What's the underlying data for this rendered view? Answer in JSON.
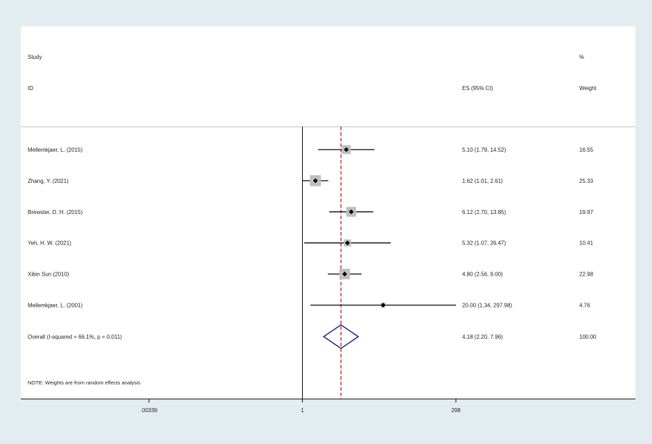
{
  "chart_data": {
    "type": "forest",
    "header": {
      "study_line1": "Study",
      "study_line2": "ID",
      "es_label": "ES (95% CI)",
      "weight_line1": "%",
      "weight_line2": "Weight"
    },
    "studies": [
      {
        "label": "Mellemkjaer, L. (2015)",
        "es": 5.1,
        "lo": 1.79,
        "hi": 14.52,
        "es_text": "5.10 (1.79, 14.52)",
        "weight": 16.55,
        "weight_text": "16.55"
      },
      {
        "label": "Zhang, Y. (2021)",
        "es": 1.62,
        "lo": 1.01,
        "hi": 2.61,
        "es_text": "1.62 (1.01, 2.61)",
        "weight": 25.33,
        "weight_text": "25.33"
      },
      {
        "label": "Brewster, D. H. (2015)",
        "es": 6.12,
        "lo": 2.7,
        "hi": 13.85,
        "es_text": "6.12 (2.70, 13.85)",
        "weight": 19.97,
        "weight_text": "19.97"
      },
      {
        "label": "Yeh, H. W. (2021)",
        "es": 5.32,
        "lo": 1.07,
        "hi": 26.47,
        "es_text": "5.32 (1.07, 26.47)",
        "weight": 10.41,
        "weight_text": "10.41"
      },
      {
        "label": "Xibin Sun (2010)",
        "es": 4.8,
        "lo": 2.56,
        "hi": 9.0,
        "es_text": "4.80 (2.56, 9.00)",
        "weight": 22.98,
        "weight_text": "22.98"
      },
      {
        "label": "Mellemkjaer, L. (2001)",
        "es": 20.0,
        "lo": 1.34,
        "hi": 297.98,
        "es_text": "20.00 (1.34, 297.98)",
        "weight": 4.76,
        "weight_text": "4.76"
      }
    ],
    "overall": {
      "label": "Overall  (I-squared = 66.1%, p = 0.011)",
      "es": 4.18,
      "lo": 2.2,
      "hi": 7.96,
      "es_text": "4.18 (2.20, 7.96)",
      "weight_text": "100.00"
    },
    "note": "NOTE: Weights are from random effects analysis",
    "x_scale": "log",
    "x_range": [
      0.00336,
      298
    ],
    "x_ticks": [
      {
        "value": 0.00336,
        "label": ".00336"
      },
      {
        "value": 1,
        "label": "1"
      },
      {
        "value": 298,
        "label": "298"
      }
    ],
    "null_line": 1,
    "colors": {
      "background": "#e3edf1",
      "plot_background": "#ffffff",
      "box": "#c0c0c0",
      "point": "#000000",
      "overall_line": "#c00000",
      "diamond": "#1a237e",
      "text": "#222222"
    }
  }
}
